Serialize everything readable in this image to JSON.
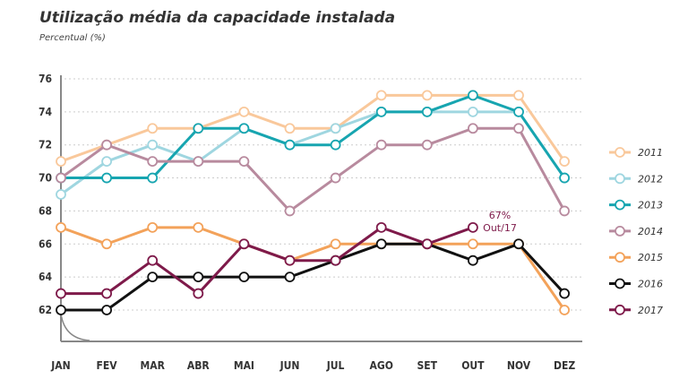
{
  "chart_data": {
    "type": "line",
    "title": "Utilização média da capacidade instalada",
    "subtitle": "Percentual (%)",
    "categories": [
      "JAN",
      "FEV",
      "MAR",
      "ABR",
      "MAI",
      "JUN",
      "JUL",
      "AGO",
      "SET",
      "OUT",
      "NOV",
      "DEZ"
    ],
    "yticks": [
      62,
      64,
      66,
      68,
      70,
      72,
      74,
      76
    ],
    "ylim": [
      60,
      76
    ],
    "grid": true,
    "legend": "right",
    "series": [
      {
        "name": "2011",
        "color": "#f9c89b",
        "values": [
          71,
          72,
          73,
          73,
          74,
          73,
          73,
          75,
          75,
          75,
          75,
          71
        ]
      },
      {
        "name": "2012",
        "color": "#9fd6e0",
        "values": [
          69,
          71,
          72,
          71,
          73,
          72,
          73,
          74,
          74,
          74,
          74,
          70
        ]
      },
      {
        "name": "2013",
        "color": "#17a5b0",
        "values": [
          70,
          70,
          70,
          73,
          73,
          72,
          72,
          74,
          74,
          75,
          74,
          70
        ]
      },
      {
        "name": "2014",
        "color": "#b88a9e",
        "values": [
          70,
          72,
          71,
          71,
          71,
          68,
          70,
          72,
          72,
          73,
          73,
          68
        ]
      },
      {
        "name": "2015",
        "color": "#f3a25a",
        "values": [
          67,
          66,
          67,
          67,
          66,
          65,
          66,
          66,
          66,
          66,
          66,
          62
        ]
      },
      {
        "name": "2016",
        "color": "#111111",
        "values": [
          62,
          62,
          64,
          64,
          64,
          64,
          65,
          66,
          66,
          65,
          66,
          63
        ]
      },
      {
        "name": "2017",
        "color": "#7e1a4a",
        "values": [
          63,
          63,
          65,
          63,
          66,
          65,
          65,
          67,
          66,
          67,
          null,
          null
        ]
      }
    ],
    "annotation": {
      "line1": "67%",
      "line2": "Out/17",
      "color": "#7e1a4a"
    }
  }
}
